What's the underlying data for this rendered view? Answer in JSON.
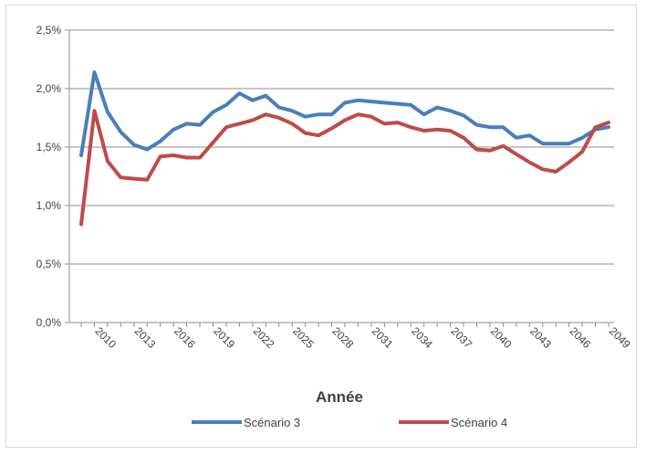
{
  "chart_data": {
    "type": "line",
    "title": "",
    "xlabel": "Année",
    "ylabel": "",
    "ylim": [
      0,
      0.025
    ],
    "yticks": [
      "0,0%",
      "0,5%",
      "1,0%",
      "1,5%",
      "2,0%",
      "2,5%"
    ],
    "xtick_labels": [
      "2010",
      "2013",
      "2016",
      "2019",
      "2022",
      "2025",
      "2028",
      "2031",
      "2034",
      "2037",
      "2040",
      "2043",
      "2046",
      "2049"
    ],
    "grid": "horizontal",
    "legend": "bottom",
    "x": [
      2009,
      2010,
      2011,
      2012,
      2013,
      2014,
      2015,
      2016,
      2017,
      2018,
      2019,
      2020,
      2021,
      2022,
      2023,
      2024,
      2025,
      2026,
      2027,
      2028,
      2029,
      2030,
      2031,
      2032,
      2033,
      2034,
      2035,
      2036,
      2037,
      2038,
      2039,
      2040,
      2041,
      2042,
      2043,
      2044,
      2045,
      2046,
      2047,
      2048,
      2049
    ],
    "series": [
      {
        "name": "Scénario 3",
        "color": "#4a7ebb",
        "values": [
          0.0143,
          0.0214,
          0.018,
          0.0163,
          0.0152,
          0.0148,
          0.0155,
          0.0165,
          0.017,
          0.0169,
          0.018,
          0.0186,
          0.0196,
          0.019,
          0.0194,
          0.0184,
          0.0181,
          0.0176,
          0.0178,
          0.0178,
          0.0188,
          0.019,
          0.0189,
          0.0188,
          0.0187,
          0.0186,
          0.0178,
          0.0184,
          0.0181,
          0.0177,
          0.0169,
          0.0167,
          0.0167,
          0.0158,
          0.016,
          0.0153,
          0.0153,
          0.0153,
          0.0158,
          0.0165,
          0.0167
        ]
      },
      {
        "name": "Scénario 4",
        "color": "#be4b48",
        "values": [
          0.0084,
          0.0181,
          0.0138,
          0.0124,
          0.0123,
          0.0122,
          0.0142,
          0.0143,
          0.0141,
          0.0141,
          0.0154,
          0.0167,
          0.017,
          0.0173,
          0.0178,
          0.0175,
          0.017,
          0.0162,
          0.016,
          0.0166,
          0.0173,
          0.0178,
          0.0176,
          0.017,
          0.0171,
          0.0167,
          0.0164,
          0.0165,
          0.0164,
          0.0158,
          0.0148,
          0.0147,
          0.0151,
          0.0144,
          0.0137,
          0.0131,
          0.0129,
          0.0137,
          0.0146,
          0.0167,
          0.0171
        ]
      }
    ]
  }
}
